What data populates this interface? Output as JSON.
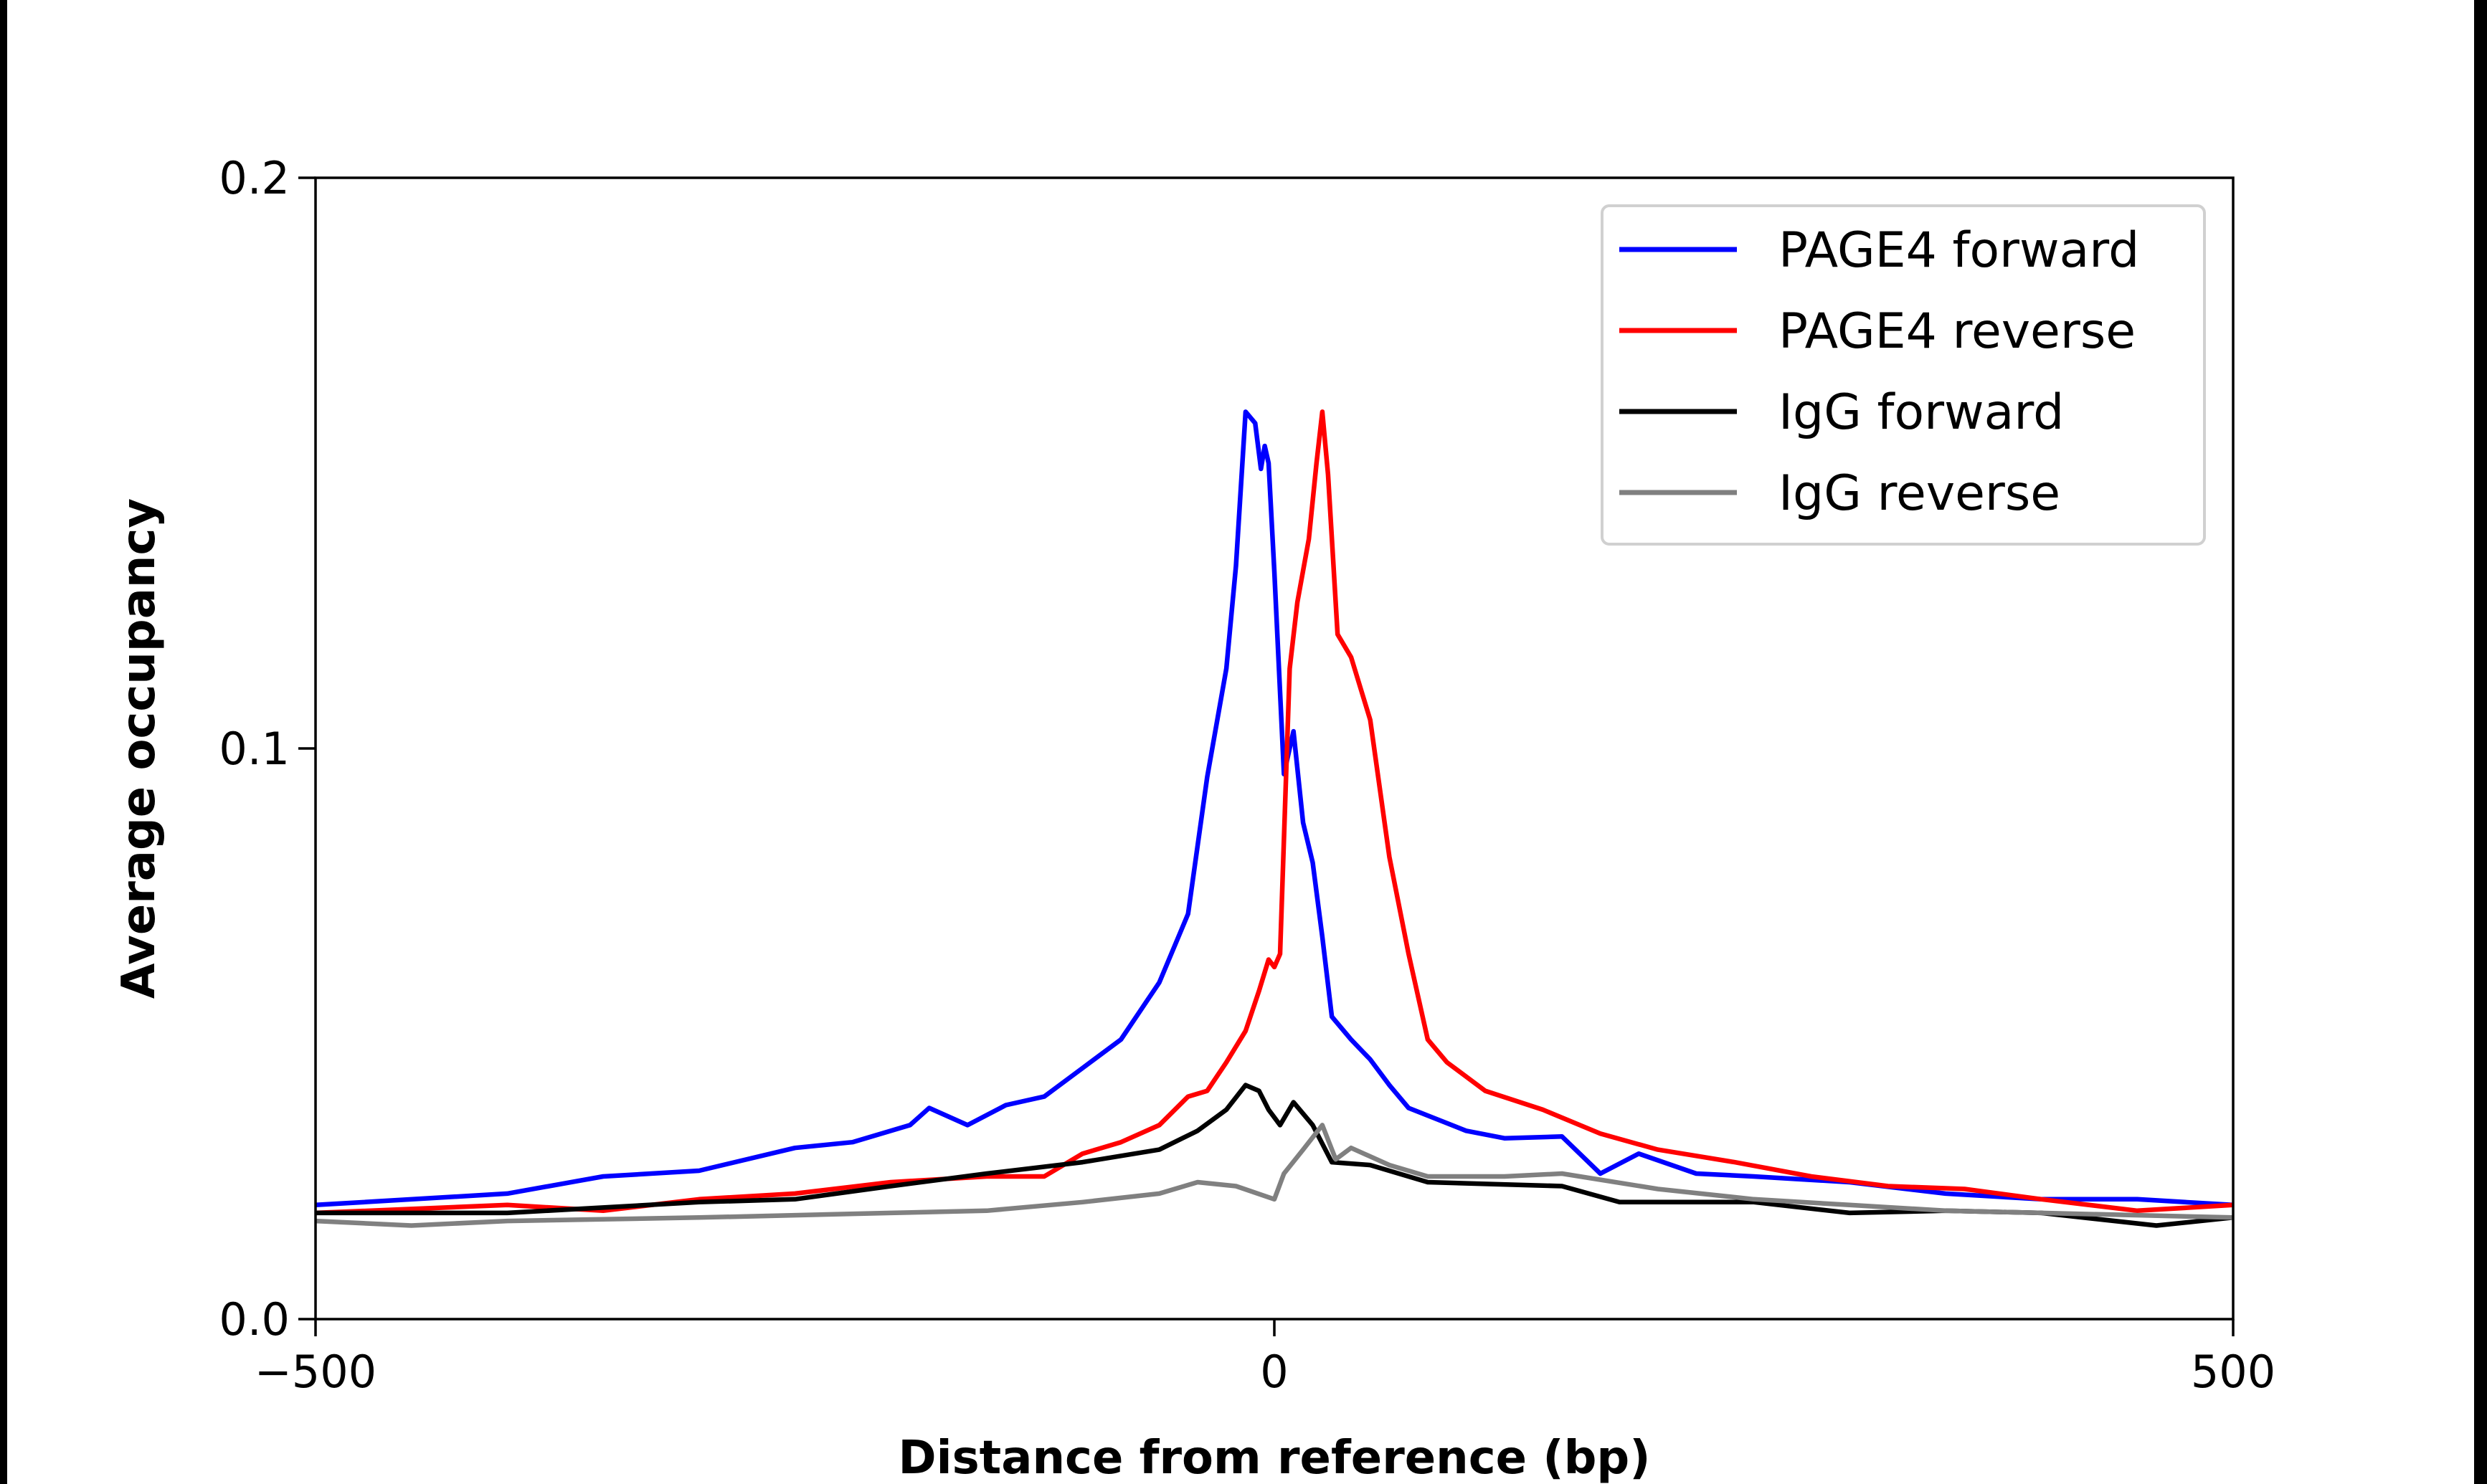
{
  "chart_data": {
    "type": "line",
    "title": "",
    "xlabel": "Distance from reference (bp)",
    "ylabel": "Average occupancy",
    "xlim": [
      -500,
      500
    ],
    "ylim": [
      0,
      0.2
    ],
    "xticks": [
      -500,
      0,
      500
    ],
    "xtick_labels": [
      "−500",
      "0",
      "500"
    ],
    "yticks": [
      0,
      0.1,
      0.2
    ],
    "ytick_labels": [
      "0.0",
      "0.1",
      "0.2"
    ],
    "grid": false,
    "legend_position": "top-right",
    "series": [
      {
        "name": "PAGE4 forward",
        "color": "#0000ff",
        "x": [
          -500,
          -400,
          -350,
          -300,
          -250,
          -220,
          -190,
          -180,
          -160,
          -140,
          -120,
          -100,
          -80,
          -60,
          -45,
          -35,
          -25,
          -20,
          -15,
          -10,
          -7,
          -5,
          -3,
          0,
          5,
          10,
          15,
          20,
          25,
          30,
          40,
          50,
          60,
          70,
          85,
          100,
          120,
          150,
          170,
          190,
          220,
          250,
          300,
          350,
          400,
          450,
          500
        ],
        "y": [
          0.02,
          0.022,
          0.025,
          0.026,
          0.03,
          0.031,
          0.034,
          0.037,
          0.034,
          0.0375,
          0.039,
          0.044,
          0.049,
          0.059,
          0.071,
          0.095,
          0.114,
          0.132,
          0.159,
          0.157,
          0.149,
          0.153,
          0.15,
          0.131,
          0.0955,
          0.103,
          0.087,
          0.08,
          0.067,
          0.053,
          0.049,
          0.0455,
          0.041,
          0.037,
          0.035,
          0.033,
          0.0317,
          0.032,
          0.0255,
          0.029,
          0.0255,
          0.025,
          0.024,
          0.022,
          0.021,
          0.021,
          0.02
        ]
      },
      {
        "name": "PAGE4 reverse",
        "color": "#ff0000",
        "x": [
          -500,
          -400,
          -350,
          -300,
          -250,
          -200,
          -150,
          -120,
          -100,
          -80,
          -60,
          -45,
          -35,
          -25,
          -15,
          -8,
          -3,
          0,
          3,
          8,
          12,
          18,
          22,
          25,
          28,
          33,
          40,
          50,
          60,
          70,
          80,
          90,
          110,
          140,
          170,
          200,
          240,
          280,
          320,
          360,
          400,
          450,
          500
        ],
        "y": [
          0.0186,
          0.02,
          0.019,
          0.021,
          0.022,
          0.024,
          0.025,
          0.025,
          0.029,
          0.031,
          0.034,
          0.039,
          0.04,
          0.045,
          0.0505,
          0.0575,
          0.063,
          0.0617,
          0.064,
          0.114,
          0.1256,
          0.1367,
          0.15,
          0.159,
          0.148,
          0.12,
          0.116,
          0.105,
          0.081,
          0.064,
          0.049,
          0.045,
          0.04,
          0.0367,
          0.0325,
          0.0297,
          0.0275,
          0.025,
          0.0233,
          0.0228,
          0.021,
          0.019,
          0.02
        ]
      },
      {
        "name": "IgG forward",
        "color": "#000000",
        "x": [
          -500,
          -400,
          -300,
          -250,
          -200,
          -150,
          -100,
          -60,
          -40,
          -25,
          -15,
          -8,
          -3,
          3,
          10,
          20,
          30,
          50,
          80,
          150,
          180,
          250,
          300,
          350,
          400,
          460,
          500
        ],
        "y": [
          0.0186,
          0.0186,
          0.0205,
          0.021,
          0.0233,
          0.0255,
          0.0275,
          0.0297,
          0.033,
          0.0367,
          0.041,
          0.04,
          0.0367,
          0.034,
          0.038,
          0.034,
          0.0275,
          0.027,
          0.024,
          0.0233,
          0.0205,
          0.0205,
          0.0186,
          0.019,
          0.0186,
          0.0164,
          0.0178
        ]
      },
      {
        "name": "IgG reverse",
        "color": "#808080",
        "x": [
          -500,
          -450,
          -400,
          -300,
          -200,
          -150,
          -100,
          -60,
          -40,
          -20,
          0,
          5,
          15,
          25,
          32,
          40,
          60,
          80,
          120,
          150,
          200,
          250,
          300,
          350,
          400,
          500
        ],
        "y": [
          0.0172,
          0.0164,
          0.0172,
          0.0178,
          0.0186,
          0.019,
          0.0205,
          0.022,
          0.024,
          0.0233,
          0.021,
          0.0255,
          0.0297,
          0.034,
          0.028,
          0.03,
          0.027,
          0.025,
          0.025,
          0.0255,
          0.0228,
          0.021,
          0.02,
          0.019,
          0.0186,
          0.0178
        ]
      }
    ]
  }
}
